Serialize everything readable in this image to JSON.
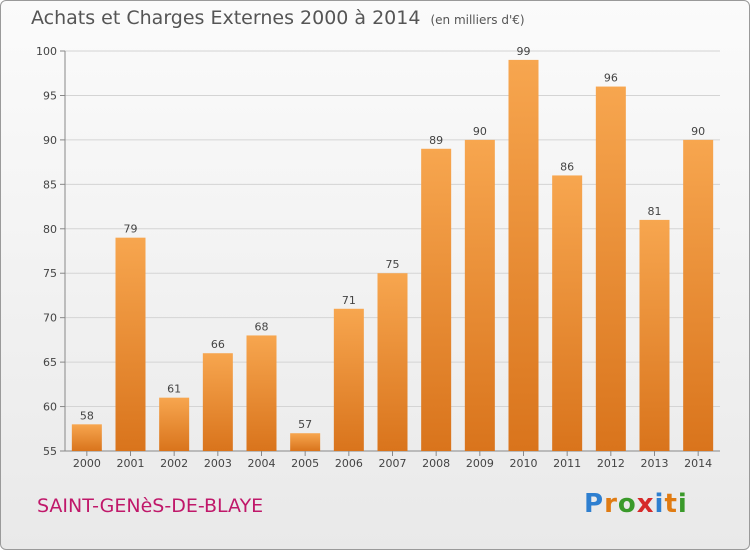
{
  "header": {
    "title": "Achats et Charges Externes 2000 à 2014",
    "unit": "(en milliers d'€)"
  },
  "footer": {
    "commune": "SAINT-GENèS-DE-BLAYE",
    "brand": "Proxiti",
    "brand_colors": [
      "#2e7fd0",
      "#e07b12",
      "#3a9a2a",
      "#d62a2a",
      "#2e7fd0",
      "#e07b12",
      "#3a9a2a"
    ]
  },
  "colors": {
    "bar_top": "#f7a64f",
    "bar_bottom": "#d9741c",
    "text": "#555555",
    "commune": "#c0186a"
  },
  "chart_data": {
    "type": "bar",
    "title": "Achats et Charges Externes 2000 à 2014",
    "subtitle": "(en milliers d'€)",
    "categories": [
      "2000",
      "2001",
      "2002",
      "2003",
      "2004",
      "2005",
      "2006",
      "2007",
      "2008",
      "2009",
      "2010",
      "2011",
      "2012",
      "2013",
      "2014"
    ],
    "values": [
      58,
      79,
      61,
      66,
      68,
      57,
      71,
      75,
      89,
      90,
      99,
      86,
      96,
      81,
      90
    ],
    "ylim": [
      55,
      100
    ],
    "yticks": [
      55,
      60,
      65,
      70,
      75,
      80,
      85,
      90,
      95,
      100
    ],
    "grid": true,
    "legend": "none"
  }
}
